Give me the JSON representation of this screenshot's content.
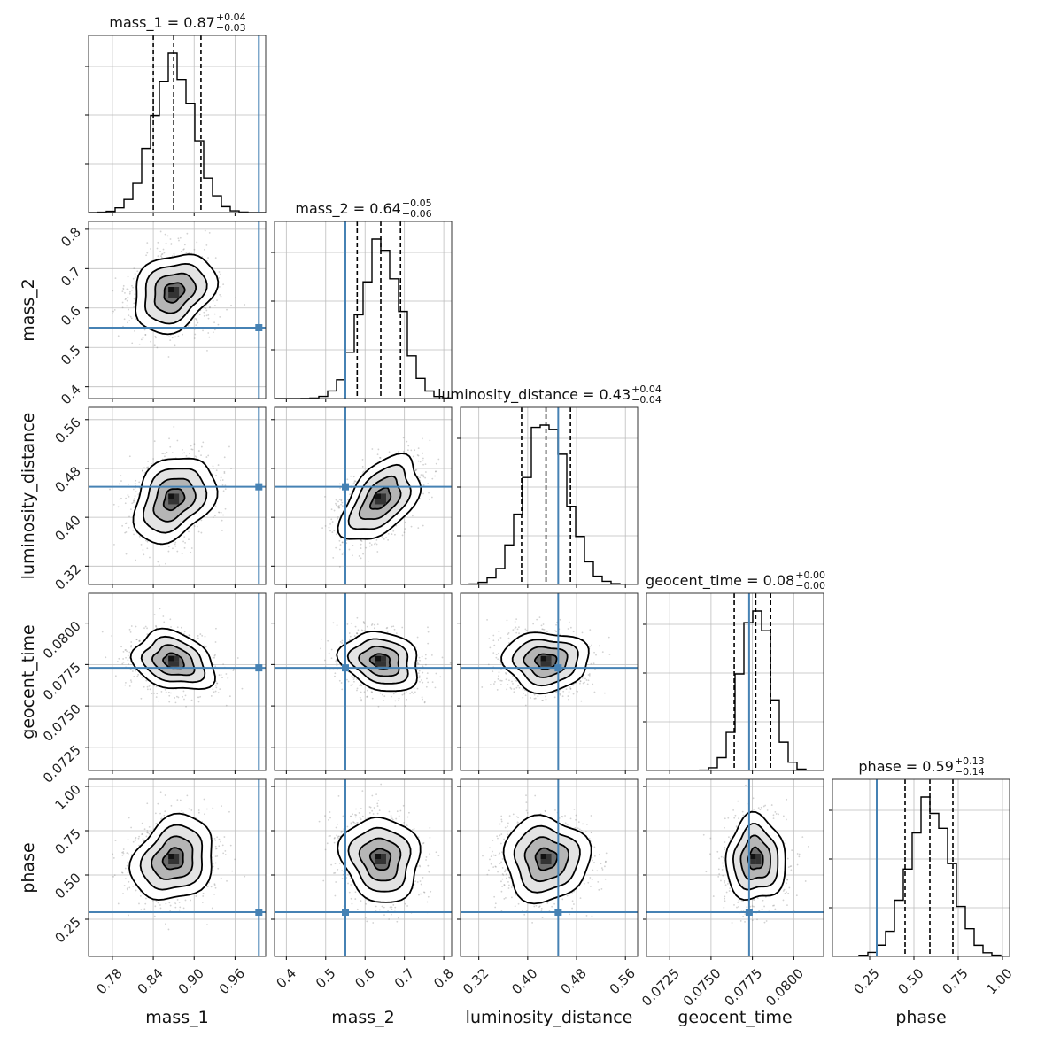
{
  "chart_data": {
    "type": "corner",
    "parameters": [
      "mass_1",
      "mass_2",
      "luminosity_distance",
      "geocent_time",
      "phase"
    ],
    "ranges": [
      [
        0.745,
        1.005
      ],
      [
        0.37,
        0.82
      ],
      [
        0.29,
        0.58
      ],
      [
        0.0711,
        0.0818
      ],
      [
        0.04,
        1.04
      ]
    ],
    "ticks": [
      [
        0.78,
        0.84,
        0.9,
        0.96
      ],
      [
        0.4,
        0.5,
        0.6,
        0.7,
        0.8
      ],
      [
        0.32,
        0.4,
        0.48,
        0.56
      ],
      [
        0.0725,
        0.075,
        0.0775,
        0.08
      ],
      [
        0.25,
        0.5,
        0.75,
        1.0
      ]
    ],
    "tick_labels": [
      [
        "0.78",
        "0.84",
        "0.90",
        "0.96"
      ],
      [
        "0.4",
        "0.5",
        "0.6",
        "0.7",
        "0.8"
      ],
      [
        "0.32",
        "0.40",
        "0.48",
        "0.56"
      ],
      [
        "0.0725",
        "0.0750",
        "0.0775",
        "0.0800"
      ],
      [
        "0.25",
        "0.50",
        "0.75",
        "1.00"
      ]
    ],
    "injection": [
      0.995,
      0.55,
      0.45,
      0.0773,
      0.29
    ],
    "medians": [
      0.87,
      0.64,
      0.43,
      0.0777,
      0.59
    ],
    "quantiles_16_84": [
      [
        0.84,
        0.91
      ],
      [
        0.58,
        0.69
      ],
      [
        0.39,
        0.47
      ],
      [
        0.0764,
        0.0786
      ],
      [
        0.45,
        0.72
      ]
    ],
    "sigma": [
      0.03,
      0.05,
      0.035,
      0.0009,
      0.12
    ],
    "correlations": {
      "0-1": 0.25,
      "0-2": 0.3,
      "1-2": 0.5,
      "0-3": -0.25,
      "1-3": -0.2,
      "2-3": 0.0,
      "0-4": 0.2,
      "1-4": -0.1,
      "2-4": 0.0,
      "3-4": 0.0
    },
    "titles": [
      {
        "main": "mass_1 = 0.87",
        "sup": "+0.04",
        "sub": "−0.03"
      },
      {
        "main": "mass_2 = 0.64",
        "sup": "+0.05",
        "sub": "−0.06"
      },
      {
        "main": "luminosity_distance = 0.43",
        "sup": "+0.04",
        "sub": "−0.04"
      },
      {
        "main": "geocent_time = 0.08",
        "sup": "+0.00",
        "sub": "−0.00"
      },
      {
        "main": "phase = 0.59",
        "sup": "+0.13",
        "sub": "−0.14"
      }
    ],
    "grid": true,
    "colors": {
      "injection": "#4682b4",
      "hist": "#000000",
      "contour": "#000000",
      "scatter": "#7f7f7f",
      "grid": "#bdbdbd"
    }
  }
}
